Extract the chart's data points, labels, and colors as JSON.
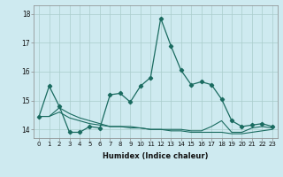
{
  "xlabel": "Humidex (Indice chaleur)",
  "background_color": "#ceeaf0",
  "grid_color": "#aacccc",
  "line_color": "#1a6b60",
  "xlim": [
    -0.5,
    23.5
  ],
  "ylim": [
    13.7,
    18.3
  ],
  "yticks": [
    14,
    15,
    16,
    17,
    18
  ],
  "xticks": [
    0,
    1,
    2,
    3,
    4,
    5,
    6,
    7,
    8,
    9,
    10,
    11,
    12,
    13,
    14,
    15,
    16,
    17,
    18,
    19,
    20,
    21,
    22,
    23
  ],
  "line1_x": [
    0,
    1,
    2,
    3,
    4,
    5,
    6,
    7,
    8,
    9,
    10,
    11,
    12,
    13,
    14,
    15,
    16,
    17,
    18,
    19,
    20,
    21,
    22,
    23
  ],
  "line1_y": [
    14.45,
    15.5,
    14.8,
    13.9,
    13.9,
    14.1,
    14.05,
    15.2,
    15.25,
    14.95,
    15.5,
    15.8,
    17.85,
    16.9,
    16.05,
    15.55,
    15.65,
    15.55,
    15.05,
    14.3,
    14.1,
    14.15,
    14.2,
    14.1
  ],
  "line2_x": [
    0,
    1,
    2,
    3,
    4,
    5,
    6,
    7,
    8,
    9,
    10,
    11,
    12,
    13,
    14,
    15,
    16,
    17,
    18,
    19,
    20,
    21,
    22,
    23
  ],
  "line2_y": [
    14.45,
    14.45,
    14.75,
    14.55,
    14.4,
    14.3,
    14.2,
    14.1,
    14.1,
    14.1,
    14.05,
    14.0,
    14.0,
    13.95,
    13.95,
    13.9,
    13.9,
    13.9,
    13.9,
    13.85,
    13.85,
    13.9,
    13.95,
    14.0
  ],
  "line3_x": [
    0,
    1,
    2,
    3,
    4,
    5,
    6,
    7,
    8,
    9,
    10,
    11,
    12,
    13,
    14,
    15,
    16,
    17,
    18,
    19,
    20,
    21,
    22,
    23
  ],
  "line3_y": [
    14.45,
    14.45,
    14.6,
    14.4,
    14.3,
    14.2,
    14.15,
    14.1,
    14.1,
    14.05,
    14.05,
    14.0,
    14.0,
    14.0,
    14.0,
    13.95,
    13.95,
    14.1,
    14.3,
    13.9,
    13.9,
    14.05,
    14.1,
    14.05
  ]
}
